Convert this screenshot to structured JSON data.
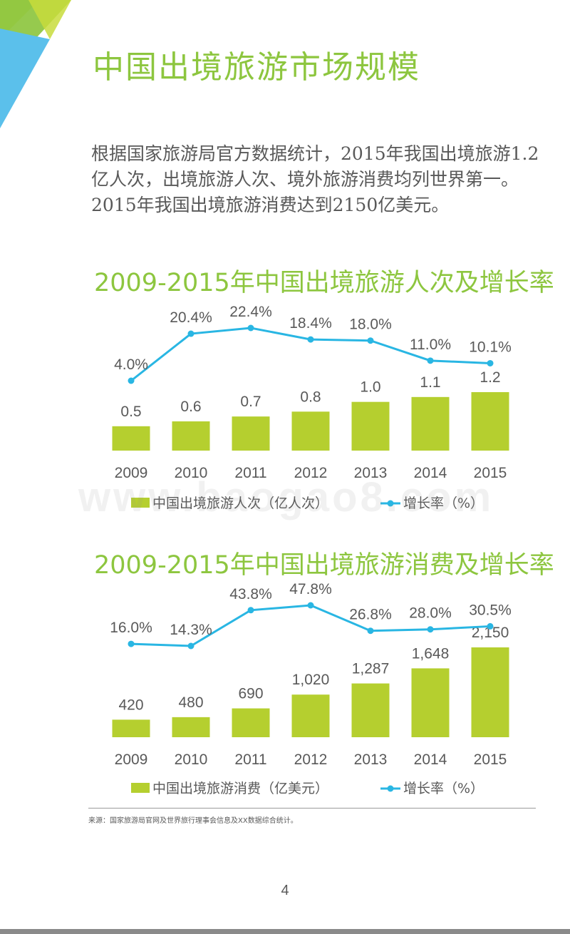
{
  "page": {
    "title": "中国出境旅游市场规模",
    "intro": "根据国家旅游局官方数据统计，2015年我国出境旅游1.2亿人次，出境旅游人次、境外旅游消费均列世界第一。2015年我国出境旅游消费达到2150亿美元。",
    "source": "来源：国家旅游局官网及世界旅行理事会信息及XX数据综合统计。",
    "page_number": "4",
    "watermark": "www.baogao8.com",
    "colors": {
      "accent_green": "#8dc63f",
      "bar_green": "#b5cf2f",
      "line_blue": "#29b6e3",
      "text_gray": "#595959"
    }
  },
  "chart_data": [
    {
      "type": "bar",
      "title": "2009-2015年中国出境旅游人次及增长率",
      "categories": [
        "2009",
        "2010",
        "2011",
        "2012",
        "2013",
        "2014",
        "2015"
      ],
      "series": [
        {
          "name": "中国出境旅游人次（亿人次）",
          "type": "bar",
          "values": [
            0.5,
            0.6,
            0.7,
            0.8,
            1.0,
            1.1,
            1.2
          ],
          "labels": [
            "0.5",
            "0.6",
            "0.7",
            "0.8",
            "1.0",
            "1.1",
            "1.2"
          ]
        },
        {
          "name": "增长率（%）",
          "type": "line",
          "values": [
            4.0,
            20.4,
            22.4,
            18.4,
            18.0,
            11.0,
            10.1
          ],
          "labels": [
            "4.0%",
            "20.4%",
            "22.4%",
            "18.4%",
            "18.0%",
            "11.0%",
            "10.1%"
          ]
        }
      ],
      "legend": "bottom",
      "grid": false
    },
    {
      "type": "bar",
      "title": "2009-2015年中国出境旅游消费及增长率",
      "categories": [
        "2009",
        "2010",
        "2011",
        "2012",
        "2013",
        "2014",
        "2015"
      ],
      "series": [
        {
          "name": "中国出境旅游消费（亿美元）",
          "type": "bar",
          "values": [
            420,
            480,
            690,
            1020,
            1287,
            1648,
            2150
          ],
          "labels": [
            "420",
            "480",
            "690",
            "1,020",
            "1,287",
            "1,648",
            "2,150"
          ]
        },
        {
          "name": "增长率（%）",
          "type": "line",
          "values": [
            16.0,
            14.3,
            43.8,
            47.8,
            26.8,
            28.0,
            30.5
          ],
          "labels": [
            "16.0%",
            "14.3%",
            "43.8%",
            "47.8%",
            "26.8%",
            "28.0%",
            "30.5%"
          ]
        }
      ],
      "legend": "bottom",
      "grid": false
    }
  ]
}
